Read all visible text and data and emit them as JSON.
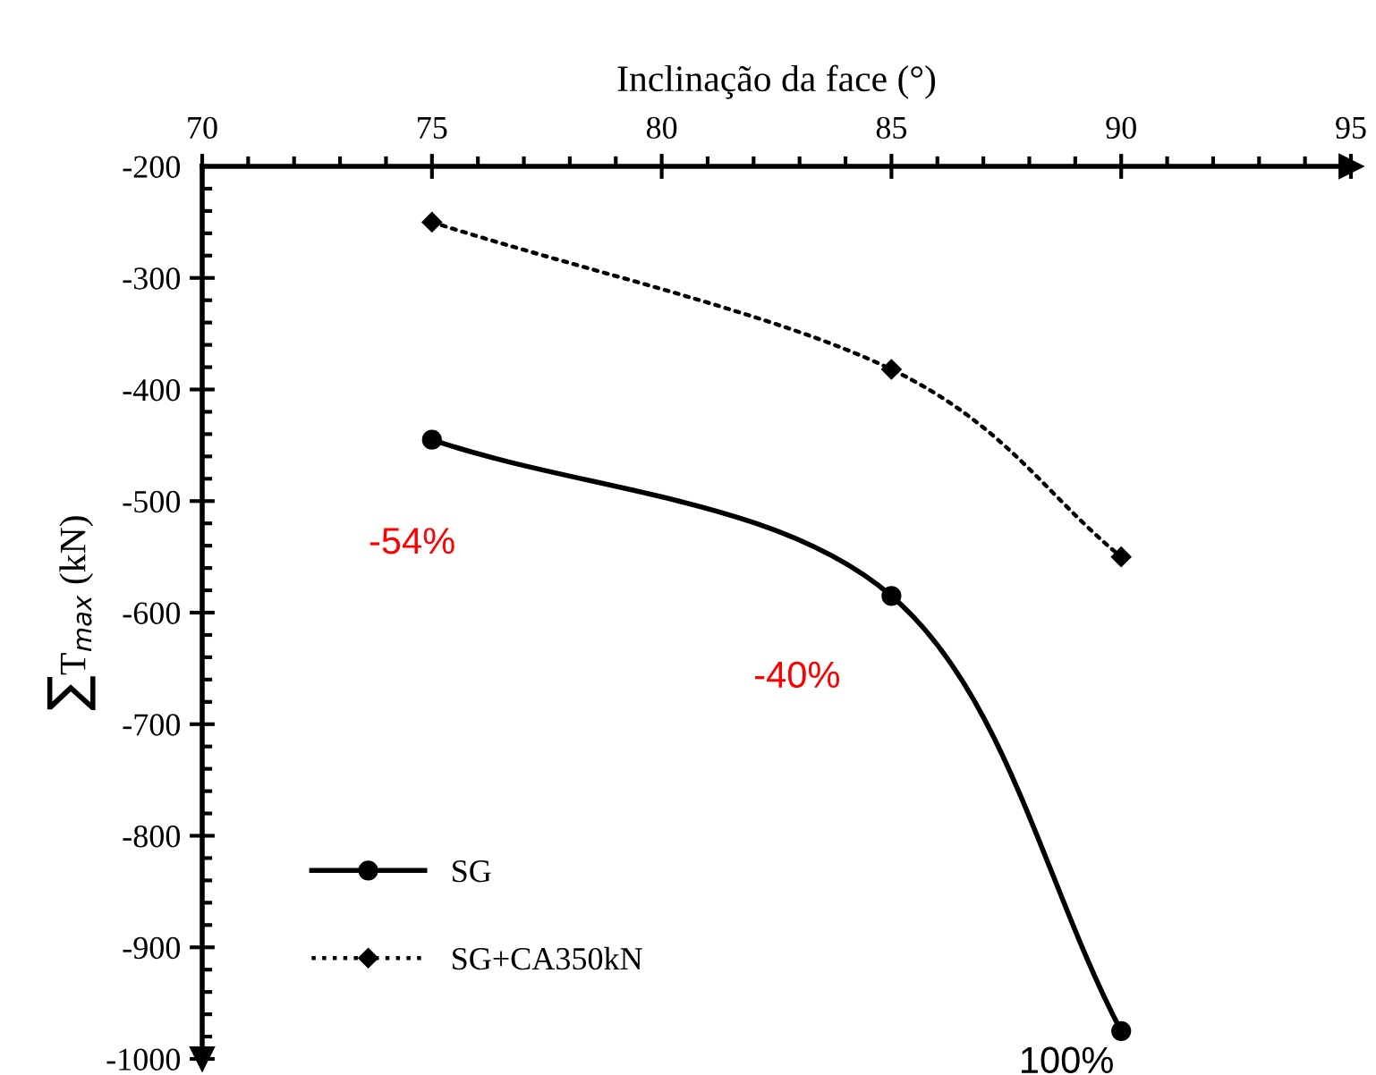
{
  "chart_data": {
    "type": "line",
    "xlabel": "Inclinação da face (°)",
    "ylabel": "∑T$_{max}$ (kN)",
    "x": [
      75,
      85,
      90
    ],
    "series": [
      {
        "name": "SG",
        "color": "#000000",
        "values": [
          -445,
          -585,
          -975
        ],
        "marker": "circle",
        "line_style": "solid"
      },
      {
        "name": "SG+CA350kN",
        "color": "#000000",
        "values": [
          -250,
          -382,
          -550
        ],
        "marker": "diamond",
        "line_style": "dotted"
      }
    ],
    "xlim": [
      70,
      95
    ],
    "xticks": [
      70,
      75,
      80,
      85,
      90,
      95
    ],
    "ylim": [
      -1000,
      -200
    ],
    "yticks": [
      -1000,
      -900,
      -800,
      -700,
      -600,
      -500,
      -400,
      -300,
      -200
    ],
    "grid": false,
    "legend": "bottom left",
    "annotations": [
      {
        "text": "-54%",
        "x": 75,
        "y": -445
      },
      {
        "text": "-40%",
        "x": 85,
        "y": -585
      },
      {
        "text": "100%",
        "x": 90,
        "y": -975
      }
    ]
  }
}
